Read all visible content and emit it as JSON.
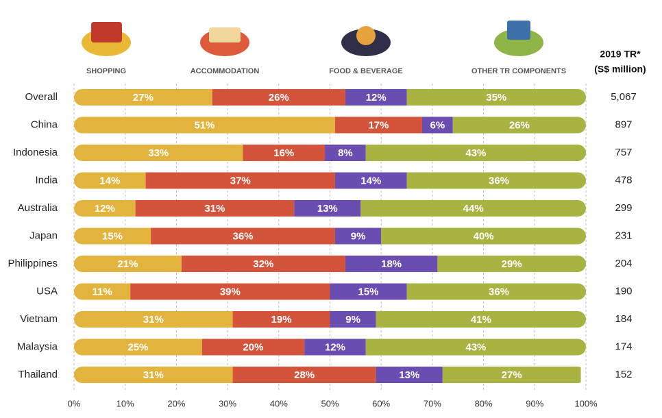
{
  "chart_data": {
    "type": "stacked-bar-horizontal",
    "categories": [
      "Overall",
      "China",
      "Indonesia",
      "India",
      "Australia",
      "Japan",
      "Philippines",
      "USA",
      "Vietnam",
      "Malaysia",
      "Thailand"
    ],
    "series": [
      {
        "name": "SHOPPING",
        "color": "#e2b43d",
        "values": [
          27,
          51,
          33,
          14,
          12,
          15,
          21,
          11,
          31,
          25,
          31
        ],
        "value_labels": [
          "27%",
          "51%",
          "33%",
          "14%",
          "12%",
          "15%",
          "21%",
          "11%",
          "31%",
          "25%",
          "31%"
        ]
      },
      {
        "name": "ACCOMMODATION",
        "color": "#d3543a",
        "values": [
          26,
          17,
          16,
          37,
          31,
          36,
          32,
          39,
          19,
          20,
          28
        ],
        "value_labels": [
          "26%",
          "17%",
          "16%",
          "37%",
          "31%",
          "36%",
          "32%",
          "39%",
          "19%",
          "20%",
          "28%"
        ]
      },
      {
        "name": "FOOD & BEVERAGE",
        "color": "#6a4db0",
        "values": [
          12,
          6,
          8,
          14,
          13,
          9,
          18,
          15,
          9,
          12,
          13
        ],
        "value_labels": [
          "12%",
          "6%",
          "8%",
          "14%",
          "13%",
          "9%",
          "18%",
          "15%",
          "9%",
          "12%",
          "13%"
        ]
      },
      {
        "name": "OTHER TR COMPONENTS",
        "color": "#a8b341",
        "values": [
          35,
          26,
          43,
          36,
          44,
          40,
          29,
          36,
          41,
          43,
          27
        ],
        "value_labels": [
          "35%",
          "26%",
          "43%",
          "36%",
          "44%",
          "40%",
          "29%",
          "36%",
          "41%",
          "43%",
          "27%"
        ]
      }
    ],
    "tr_header": [
      "2019 TR*",
      "(S$ million)"
    ],
    "tr_values": [
      5067,
      897,
      757,
      478,
      299,
      231,
      204,
      190,
      184,
      174,
      152
    ],
    "tr_value_labels": [
      "5,067",
      "897",
      "757",
      "478",
      "299",
      "231",
      "204",
      "190",
      "184",
      "174",
      "152"
    ],
    "xlim": [
      0,
      100
    ],
    "xticks": [
      {
        "value": 0,
        "label": "0%"
      },
      {
        "value": 10,
        "label": "10%"
      },
      {
        "value": 20,
        "label": "20%"
      },
      {
        "value": 30,
        "label": "30%"
      },
      {
        "value": 40,
        "label": "40%"
      },
      {
        "value": 50,
        "label": "50%"
      },
      {
        "value": 60,
        "label": "60%"
      },
      {
        "value": 70,
        "label": "70%"
      },
      {
        "value": 80,
        "label": "80%"
      },
      {
        "value": 90,
        "label": "90%"
      },
      {
        "value": 100,
        "label": "100%"
      }
    ],
    "grid": true
  }
}
